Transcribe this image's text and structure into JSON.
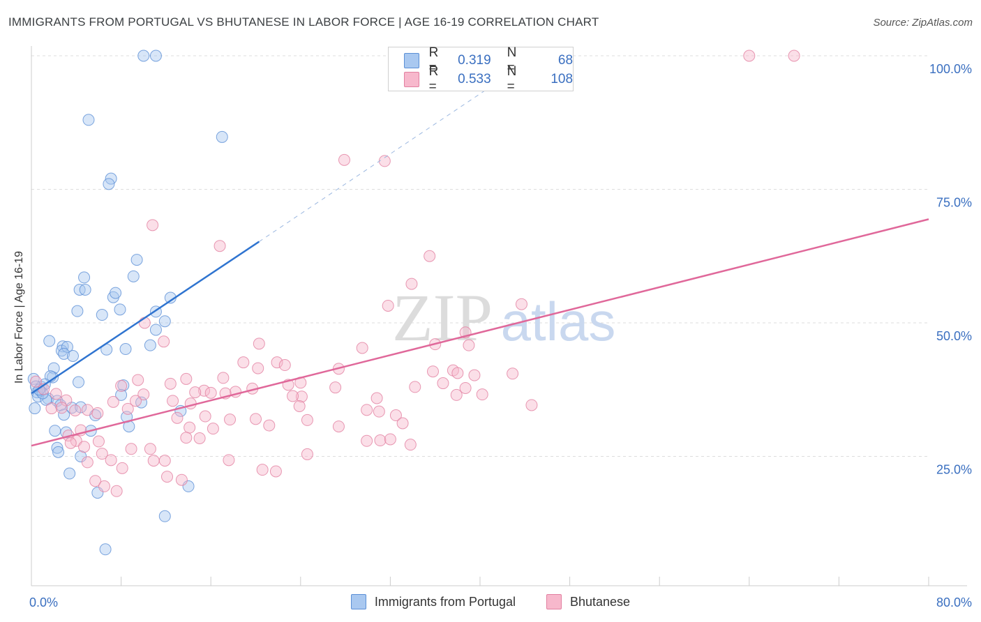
{
  "title": "IMMIGRANTS FROM PORTUGAL VS BHUTANESE IN LABOR FORCE | AGE 16-19 CORRELATION CHART",
  "source": "Source: ZipAtlas.com",
  "watermark": {
    "zip": "ZIP",
    "atlas": "atlas"
  },
  "colors": {
    "portugal_fill": "#a9c8f0",
    "portugal_stroke": "#5b8fd6",
    "portugal_line": "#2f74d0",
    "bhutanese_fill": "#f7b8cc",
    "bhutanese_stroke": "#e27fa0",
    "bhutanese_line": "#e0689a",
    "axis_text": "#3a6fc0",
    "grid": "#dddddd"
  },
  "legend_top": {
    "r_label": "R =",
    "n_label": "N =",
    "rows": [
      {
        "r": "0.319",
        "n": "68"
      },
      {
        "r": "0.533",
        "n": "108"
      }
    ]
  },
  "chart_data": {
    "type": "scatter",
    "title": "IMMIGRANTS FROM PORTUGAL VS BHUTANESE IN LABOR FORCE | AGE 16-19 CORRELATION CHART",
    "xlabel": "",
    "ylabel": "In Labor Force | Age 16-19",
    "xlim": [
      0,
      80
    ],
    "ylim": [
      0,
      102
    ],
    "x_tick_labels": [
      {
        "value": 0,
        "label": "0.0%"
      },
      {
        "value": 80,
        "label": "80.0%"
      }
    ],
    "y_tick_labels": [
      {
        "value": 25,
        "label": "25.0%"
      },
      {
        "value": 50,
        "label": "50.0%"
      },
      {
        "value": 75,
        "label": "75.0%"
      },
      {
        "value": 100,
        "label": "100.0%"
      }
    ],
    "grid": true,
    "legend": "top-center",
    "series": [
      {
        "name": "Immigrants from Portugal",
        "r": 0.319,
        "n": 68,
        "trend": {
          "x0": 0,
          "y0": 36.8,
          "x1": 20.3,
          "y1": 65.2,
          "dash_to_x": 45.0,
          "dash_to_y": 99.9
        },
        "points": [
          [
            10.0,
            100.0
          ],
          [
            11.1,
            100.0
          ],
          [
            5.1,
            88.0
          ],
          [
            17.0,
            84.8
          ],
          [
            7.1,
            77.0
          ],
          [
            6.9,
            76.0
          ],
          [
            9.4,
            61.8
          ],
          [
            9.1,
            58.7
          ],
          [
            4.7,
            58.5
          ],
          [
            4.3,
            56.2
          ],
          [
            4.8,
            56.2
          ],
          [
            7.3,
            54.8
          ],
          [
            7.5,
            55.6
          ],
          [
            12.4,
            54.7
          ],
          [
            4.1,
            52.2
          ],
          [
            7.9,
            52.5
          ],
          [
            6.3,
            51.5
          ],
          [
            11.1,
            52.1
          ],
          [
            11.9,
            50.3
          ],
          [
            11.1,
            48.7
          ],
          [
            1.6,
            46.6
          ],
          [
            2.8,
            45.6
          ],
          [
            2.7,
            44.8
          ],
          [
            3.2,
            45.5
          ],
          [
            6.7,
            45.0
          ],
          [
            8.4,
            45.1
          ],
          [
            10.6,
            45.8
          ],
          [
            2.9,
            44.2
          ],
          [
            3.7,
            43.8
          ],
          [
            2.0,
            41.5
          ],
          [
            1.9,
            39.8
          ],
          [
            1.7,
            40.0
          ],
          [
            4.2,
            38.9
          ],
          [
            8.2,
            38.3
          ],
          [
            0.9,
            38.0
          ],
          [
            1.2,
            38.5
          ],
          [
            0.8,
            37.2
          ],
          [
            0.5,
            37.0
          ],
          [
            0.6,
            36.2
          ],
          [
            8.0,
            36.5
          ],
          [
            1.5,
            35.8
          ],
          [
            1.3,
            35.6
          ],
          [
            2.3,
            35.4
          ],
          [
            2.6,
            34.6
          ],
          [
            3.6,
            34.1
          ],
          [
            4.4,
            34.2
          ],
          [
            0.3,
            34.0
          ],
          [
            9.8,
            35.1
          ],
          [
            13.3,
            33.5
          ],
          [
            2.9,
            32.8
          ],
          [
            5.7,
            32.7
          ],
          [
            8.5,
            32.4
          ],
          [
            8.7,
            30.6
          ],
          [
            2.1,
            29.8
          ],
          [
            3.1,
            29.5
          ],
          [
            5.3,
            29.8
          ],
          [
            2.3,
            26.6
          ],
          [
            2.4,
            25.8
          ],
          [
            4.4,
            25.0
          ],
          [
            3.4,
            21.8
          ],
          [
            14.0,
            19.4
          ],
          [
            5.9,
            18.2
          ],
          [
            11.9,
            13.8
          ],
          [
            6.6,
            7.6
          ],
          [
            0.2,
            39.5
          ],
          [
            0.4,
            38.1
          ],
          [
            1.0,
            36.8
          ],
          [
            0.7,
            37.5
          ]
        ]
      },
      {
        "name": "Bhutanese",
        "r": 0.533,
        "n": 108,
        "trend": {
          "x0": 0,
          "y0": 27.0,
          "x1": 80.0,
          "y1": 69.4
        },
        "points": [
          [
            64.0,
            100.0
          ],
          [
            68.0,
            100.0
          ],
          [
            27.9,
            80.5
          ],
          [
            31.5,
            80.3
          ],
          [
            10.8,
            68.3
          ],
          [
            16.8,
            64.4
          ],
          [
            35.5,
            62.5
          ],
          [
            33.9,
            57.3
          ],
          [
            31.8,
            53.2
          ],
          [
            43.7,
            53.5
          ],
          [
            10.1,
            50.0
          ],
          [
            38.7,
            48.2
          ],
          [
            11.8,
            46.5
          ],
          [
            20.3,
            46.1
          ],
          [
            29.5,
            45.3
          ],
          [
            39.0,
            45.8
          ],
          [
            36.0,
            46.0
          ],
          [
            18.9,
            42.6
          ],
          [
            21.9,
            42.6
          ],
          [
            22.6,
            42.1
          ],
          [
            20.2,
            41.5
          ],
          [
            27.4,
            41.4
          ],
          [
            35.8,
            40.9
          ],
          [
            37.6,
            41.1
          ],
          [
            38.0,
            40.6
          ],
          [
            42.9,
            40.5
          ],
          [
            39.5,
            40.2
          ],
          [
            13.8,
            39.5
          ],
          [
            17.1,
            39.7
          ],
          [
            9.5,
            39.3
          ],
          [
            36.7,
            38.7
          ],
          [
            24.0,
            38.8
          ],
          [
            8.0,
            38.2
          ],
          [
            12.4,
            38.6
          ],
          [
            22.9,
            38.4
          ],
          [
            34.2,
            38.0
          ],
          [
            27.1,
            37.9
          ],
          [
            38.7,
            37.8
          ],
          [
            19.7,
            37.7
          ],
          [
            15.4,
            37.3
          ],
          [
            18.2,
            37.1
          ],
          [
            14.6,
            37.0
          ],
          [
            16.0,
            36.9
          ],
          [
            17.3,
            36.8
          ],
          [
            10.0,
            36.6
          ],
          [
            24.1,
            36.2
          ],
          [
            37.9,
            36.5
          ],
          [
            40.2,
            36.6
          ],
          [
            23.3,
            36.3
          ],
          [
            30.8,
            35.9
          ],
          [
            3.1,
            35.5
          ],
          [
            9.3,
            35.4
          ],
          [
            7.3,
            35.2
          ],
          [
            12.6,
            35.4
          ],
          [
            14.2,
            34.9
          ],
          [
            23.9,
            34.4
          ],
          [
            44.6,
            34.6
          ],
          [
            1.8,
            34.0
          ],
          [
            2.7,
            34.1
          ],
          [
            3.9,
            33.6
          ],
          [
            5.0,
            33.7
          ],
          [
            5.9,
            33.1
          ],
          [
            8.6,
            33.9
          ],
          [
            29.9,
            33.7
          ],
          [
            31.0,
            33.4
          ],
          [
            32.5,
            32.7
          ],
          [
            20.0,
            32.0
          ],
          [
            15.5,
            32.5
          ],
          [
            13.0,
            32.2
          ],
          [
            17.7,
            31.9
          ],
          [
            24.6,
            31.8
          ],
          [
            33.1,
            31.2
          ],
          [
            21.2,
            30.8
          ],
          [
            27.4,
            30.6
          ],
          [
            14.1,
            30.4
          ],
          [
            16.2,
            30.2
          ],
          [
            4.4,
            29.9
          ],
          [
            3.3,
            28.9
          ],
          [
            13.8,
            28.5
          ],
          [
            15.0,
            28.4
          ],
          [
            4.0,
            27.9
          ],
          [
            6.0,
            27.8
          ],
          [
            29.9,
            27.9
          ],
          [
            31.1,
            28.0
          ],
          [
            32.0,
            28.2
          ],
          [
            33.8,
            27.2
          ],
          [
            3.5,
            27.5
          ],
          [
            4.7,
            26.8
          ],
          [
            8.9,
            26.4
          ],
          [
            10.6,
            26.4
          ],
          [
            24.6,
            25.4
          ],
          [
            6.3,
            25.5
          ],
          [
            7.1,
            24.3
          ],
          [
            10.9,
            24.2
          ],
          [
            11.9,
            24.2
          ],
          [
            17.6,
            24.3
          ],
          [
            5.0,
            23.9
          ],
          [
            8.1,
            22.8
          ],
          [
            20.6,
            22.5
          ],
          [
            21.8,
            22.2
          ],
          [
            12.1,
            21.2
          ],
          [
            13.4,
            20.6
          ],
          [
            5.7,
            20.4
          ],
          [
            6.5,
            19.4
          ],
          [
            7.6,
            18.5
          ],
          [
            0.4,
            39.0
          ],
          [
            2.2,
            36.7
          ],
          [
            1.1,
            37.6
          ]
        ]
      }
    ]
  }
}
